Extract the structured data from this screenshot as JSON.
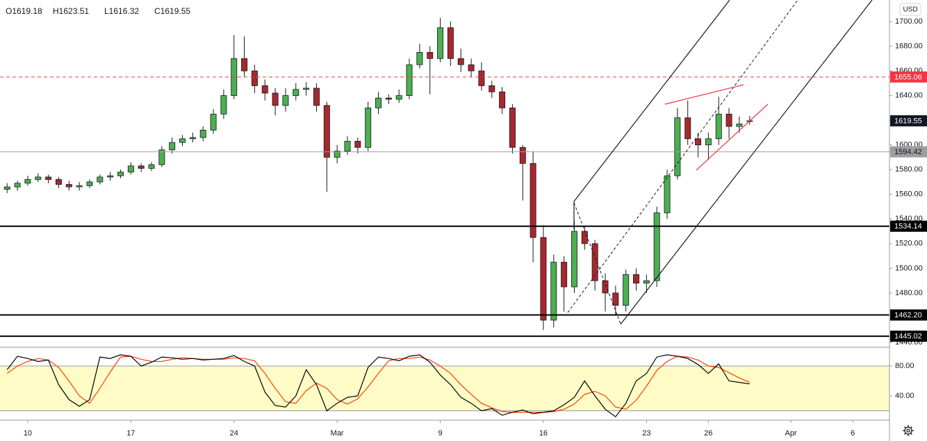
{
  "chart_data": [
    {
      "type": "candlestick",
      "ohlc_legend": [
        "O1619.18",
        "H1623.51",
        "L1616.32",
        "C1619.55"
      ],
      "currency": "USD",
      "up_color": "#4caf50",
      "down_color": "#a8282c",
      "open": [
        1564,
        1566,
        1569,
        1572,
        1574,
        1572,
        1568,
        1566,
        1567,
        1570,
        1574,
        1575,
        1578,
        1583,
        1581,
        1584,
        1596,
        1602,
        1605,
        1606,
        1612,
        1625,
        1640,
        1670,
        1660,
        1648,
        1642,
        1632,
        1640,
        1645,
        1646,
        1632,
        1590,
        1595,
        1603,
        1598,
        1630,
        1638,
        1637,
        1640,
        1665,
        1675,
        1670,
        1695,
        1670,
        1665,
        1660,
        1648,
        1643,
        1630,
        1598,
        1585,
        1525,
        1458,
        1505,
        1485,
        1530,
        1520,
        1490,
        1480,
        1470,
        1495,
        1488,
        1490,
        1545,
        1575,
        1622,
        1605,
        1600,
        1605,
        1625,
        1615,
        1619.18
      ],
      "high": [
        1569,
        1571,
        1575,
        1577,
        1576,
        1574,
        1571,
        1570,
        1572,
        1576,
        1578,
        1580,
        1586,
        1585,
        1586,
        1599,
        1606,
        1608,
        1610,
        1615,
        1629,
        1645,
        1689,
        1688,
        1665,
        1653,
        1646,
        1646,
        1650,
        1651,
        1650,
        1635,
        1600,
        1607,
        1606,
        1635,
        1643,
        1641,
        1645,
        1670,
        1682,
        1680,
        1703,
        1700,
        1678,
        1670,
        1667,
        1652,
        1647,
        1633,
        1600,
        1595,
        1535,
        1511,
        1510,
        1538,
        1534,
        1523,
        1496,
        1486,
        1499,
        1500,
        1495,
        1550,
        1580,
        1630,
        1636,
        1610,
        1610,
        1639,
        1630,
        1623,
        1623.51
      ],
      "low": [
        1561,
        1563,
        1567,
        1570,
        1569,
        1565,
        1563,
        1563,
        1565,
        1568,
        1571,
        1573,
        1576,
        1578,
        1579,
        1582,
        1593,
        1599,
        1602,
        1603,
        1609,
        1621,
        1637,
        1655,
        1642,
        1636,
        1624,
        1627,
        1636,
        1640,
        1627,
        1562,
        1585,
        1592,
        1593,
        1595,
        1625,
        1633,
        1634,
        1637,
        1662,
        1641,
        1667,
        1664,
        1659,
        1655,
        1644,
        1638,
        1625,
        1593,
        1555,
        1505,
        1450,
        1452,
        1465,
        1480,
        1515,
        1482,
        1465,
        1462,
        1465,
        1482,
        1480,
        1485,
        1540,
        1572,
        1600,
        1590,
        1588,
        1600,
        1605,
        1610,
        1616.32
      ],
      "close": [
        1566,
        1569,
        1572,
        1574,
        1572,
        1568,
        1566,
        1567,
        1570,
        1574,
        1575,
        1578,
        1583,
        1581,
        1584,
        1596,
        1602,
        1605,
        1606,
        1612,
        1625,
        1640,
        1670,
        1660,
        1648,
        1642,
        1632,
        1640,
        1645,
        1646,
        1632,
        1590,
        1595,
        1603,
        1598,
        1630,
        1638,
        1637,
        1640,
        1665,
        1675,
        1670,
        1695,
        1670,
        1665,
        1660,
        1648,
        1643,
        1630,
        1598,
        1585,
        1525,
        1458,
        1505,
        1485,
        1530,
        1520,
        1490,
        1480,
        1470,
        1495,
        1488,
        1490,
        1545,
        1575,
        1622,
        1605,
        1600,
        1605,
        1625,
        1615,
        1617,
        1619.55
      ],
      "xlim": [
        -0.69,
        85.56
      ],
      "xticks": [
        {
          "value": 2,
          "label": "10"
        },
        {
          "value": 12,
          "label": "17"
        },
        {
          "value": 22,
          "label": "24"
        },
        {
          "value": 32,
          "label": "Mar"
        },
        {
          "value": 42,
          "label": "9"
        },
        {
          "value": 52,
          "label": "16"
        },
        {
          "value": 62,
          "label": "23"
        },
        {
          "value": 68,
          "label": "26"
        },
        {
          "value": 76,
          "label": "Apr"
        },
        {
          "value": 82,
          "label": "6"
        }
      ],
      "ylim": [
        1436.06,
        1717.44
      ],
      "yticks": [
        {
          "value": 1440,
          "label": "1440.00"
        },
        {
          "value": 1460,
          "label": "1460.00"
        },
        {
          "value": 1480,
          "label": "1480.00"
        },
        {
          "value": 1500,
          "label": "1500.00"
        },
        {
          "value": 1520,
          "label": "1520.00"
        },
        {
          "value": 1540,
          "label": "1540.00"
        },
        {
          "value": 1560,
          "label": "1560.00"
        },
        {
          "value": 1580,
          "label": "1580.00"
        },
        {
          "value": 1600,
          "label": "1600.00"
        },
        {
          "value": 1620,
          "label": "1620.00"
        },
        {
          "value": 1640,
          "label": "1640.00"
        },
        {
          "value": 1660,
          "label": "1660.00"
        },
        {
          "value": 1680,
          "label": "1680.00"
        },
        {
          "value": 1700,
          "label": "1700.00"
        }
      ],
      "levels": [
        {
          "value": 1655.06,
          "color": "#f23645",
          "style": "dashed"
        },
        {
          "value": 1619.55,
          "color": "#131722",
          "style": "none"
        },
        {
          "value": 1594.42,
          "color": "#9e9e9e",
          "style": "thin"
        },
        {
          "value": 1534.14,
          "color": "#000000",
          "style": "thick"
        },
        {
          "value": 1462.2,
          "label": "1462.20",
          "color": "#000000",
          "style": "thick"
        },
        {
          "value": 1445.02,
          "color": "#000000",
          "style": "thick"
        }
      ]
    },
    {
      "type": "line",
      "series": [
        {
          "color": "#000000",
          "values": [
            75,
            93,
            90,
            86,
            88,
            55,
            35,
            26,
            35,
            92,
            90,
            95,
            93,
            80,
            85,
            92,
            91,
            89,
            90,
            88,
            89,
            90,
            94,
            86,
            80,
            45,
            27,
            25,
            40,
            75,
            55,
            20,
            30,
            38,
            40,
            78,
            92,
            90,
            87,
            93,
            95,
            85,
            68,
            55,
            38,
            30,
            20,
            23,
            14,
            18,
            21,
            16,
            18,
            20,
            28,
            38,
            60,
            40,
            22,
            12,
            30,
            60,
            70,
            92,
            95,
            93,
            90,
            82,
            70,
            83,
            60,
            58,
            56
          ]
        },
        {
          "color": "#ff3d00",
          "values": [
            70,
            80,
            86,
            90,
            88,
            78,
            60,
            40,
            30,
            50,
            72,
            92,
            93,
            89,
            86,
            86,
            89,
            91,
            90,
            89,
            89,
            89,
            91,
            90,
            87,
            70,
            50,
            32,
            30,
            47,
            57,
            50,
            35,
            29,
            36,
            52,
            70,
            87,
            90,
            90,
            92,
            88,
            80,
            70,
            55,
            42,
            30,
            24,
            19,
            18,
            18,
            18,
            18,
            19,
            22,
            29,
            42,
            46,
            40,
            25,
            22,
            34,
            53,
            74,
            86,
            93,
            92,
            88,
            80,
            78,
            71,
            64,
            58
          ]
        }
      ],
      "band": [
        20,
        80
      ],
      "band_color": "#fffcc7",
      "ylim": [
        7.44,
        105.1
      ],
      "yticks": [
        {
          "value": 40,
          "label": "40.00"
        },
        {
          "value": 80,
          "label": "80.00"
        }
      ]
    }
  ]
}
